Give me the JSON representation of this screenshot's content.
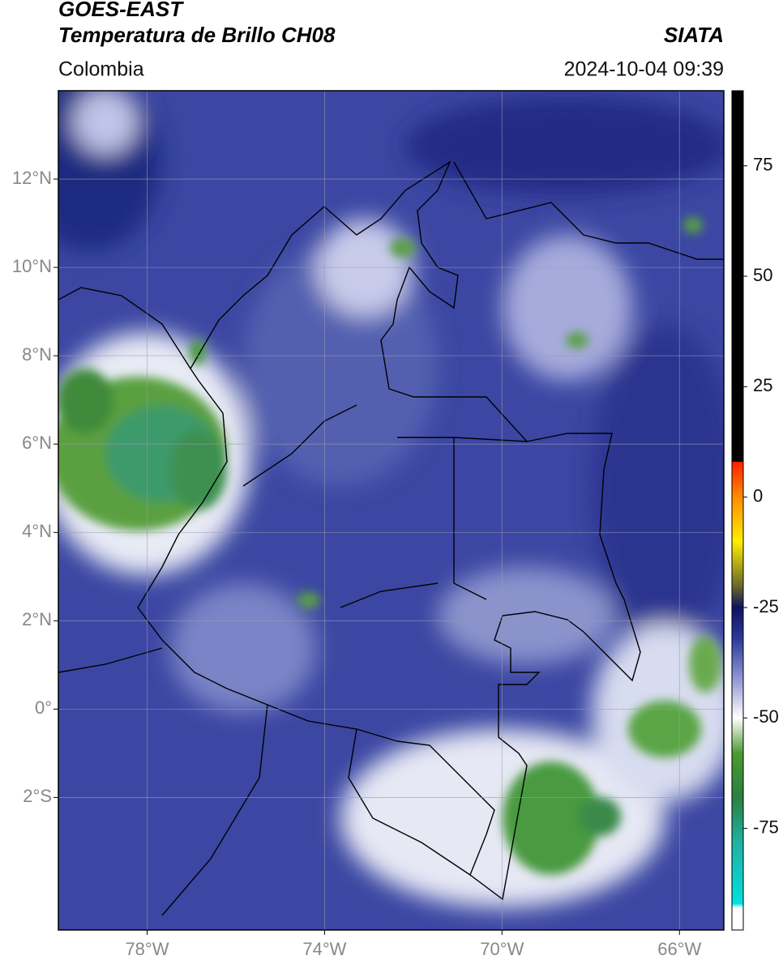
{
  "chart_data": {
    "type": "map",
    "title": "GOES-EAST",
    "subtitle": "Temperatura de Brillo CH08",
    "source": "SIATA",
    "region": "Colombia",
    "date": "2024-10-04 09:39",
    "xlim": [
      -80,
      -65
    ],
    "ylim": [
      -5,
      14
    ],
    "xticks": [
      {
        "value": -78,
        "label": "78°W"
      },
      {
        "value": -74,
        "label": "74°W"
      },
      {
        "value": -70,
        "label": "70°W"
      },
      {
        "value": -66,
        "label": "66°W"
      }
    ],
    "yticks": [
      {
        "value": 12,
        "label": "12°N"
      },
      {
        "value": 10,
        "label": "10°N"
      },
      {
        "value": 8,
        "label": "8°N"
      },
      {
        "value": 6,
        "label": "6°N"
      },
      {
        "value": 4,
        "label": "4°N"
      },
      {
        "value": 2,
        "label": "2°N"
      },
      {
        "value": 0,
        "label": "0°"
      },
      {
        "value": -2,
        "label": "2°S"
      }
    ],
    "grid": true,
    "colorbar": {
      "lim": [
        -98,
        92
      ],
      "ticks": [
        75,
        50,
        25,
        0,
        -25,
        -50,
        -75
      ],
      "colors": [
        {
          "value": 92,
          "color": "#000000"
        },
        {
          "value": 8,
          "color": "#000000"
        },
        {
          "value": 8,
          "color": "#ff2000"
        },
        {
          "value": 0,
          "color": "#ff8c00"
        },
        {
          "value": -10,
          "color": "#ffee00"
        },
        {
          "value": -20,
          "color": "#6b6b2a"
        },
        {
          "value": -25,
          "color": "#101060"
        },
        {
          "value": -32,
          "color": "#2b3a9a"
        },
        {
          "value": -42,
          "color": "#9aa0d8"
        },
        {
          "value": -50,
          "color": "#ffffff"
        },
        {
          "value": -58,
          "color": "#4c9a30"
        },
        {
          "value": -68,
          "color": "#2a8040"
        },
        {
          "value": -78,
          "color": "#20b0a0"
        },
        {
          "value": -92,
          "color": "#00e0e0"
        },
        {
          "value": -93,
          "color": "#ffffff"
        },
        {
          "value": -98,
          "color": "#ffffff"
        }
      ]
    }
  }
}
